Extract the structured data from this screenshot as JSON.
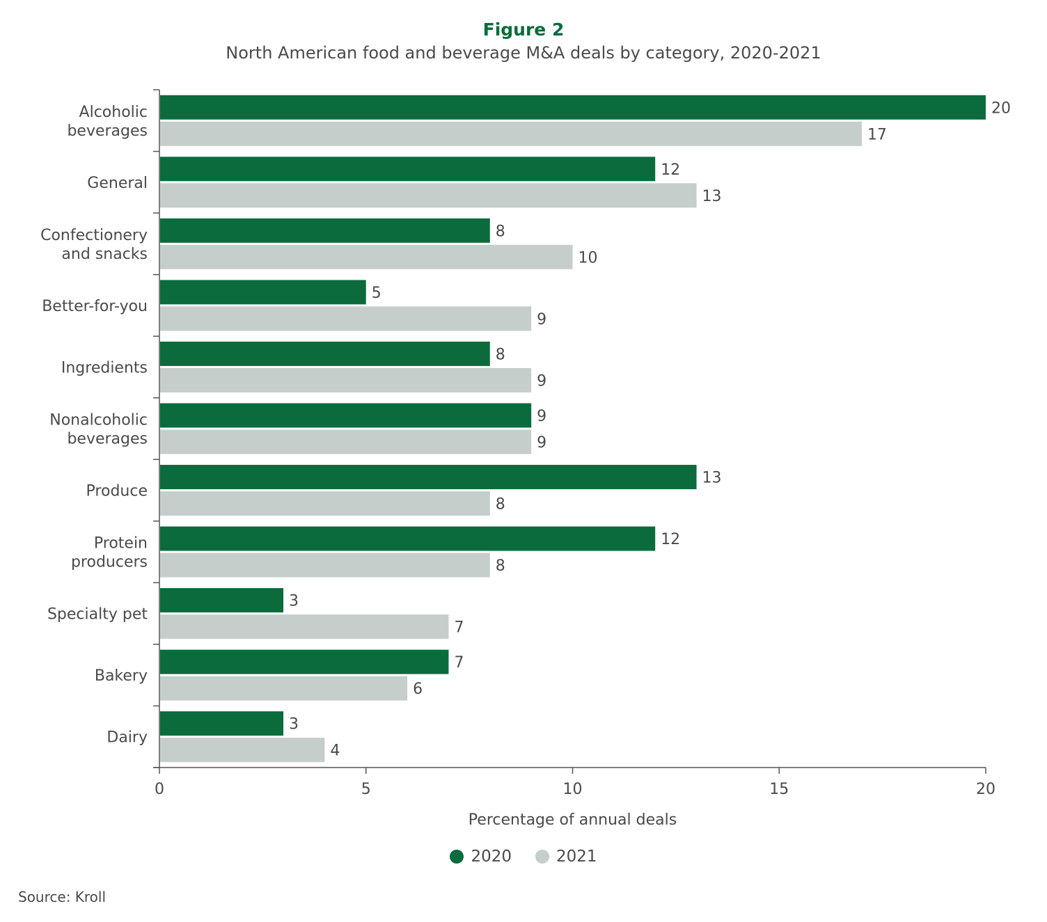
{
  "figure_label": "Figure 2",
  "subtitle": "North American food and beverage M&A deals by category, 2020-2021",
  "source": "Source: Kroll",
  "colors": {
    "series_2020": "#0b6b3c",
    "series_2021": "#c5cecb",
    "axis": "#555555",
    "text": "#4a4a4a"
  },
  "chart_data": {
    "type": "bar",
    "orientation": "horizontal",
    "categories": [
      [
        "Alcoholic",
        "beverages"
      ],
      [
        "General"
      ],
      [
        "Confectionery",
        "and snacks"
      ],
      [
        "Better-for-you"
      ],
      [
        "Ingredients"
      ],
      [
        "Nonalcoholic",
        "beverages"
      ],
      [
        "Produce"
      ],
      [
        "Protein",
        "producers"
      ],
      [
        "Specialty pet"
      ],
      [
        "Bakery"
      ],
      [
        "Dairy"
      ]
    ],
    "series": [
      {
        "name": "2020",
        "values": [
          20,
          12,
          8,
          5,
          8,
          9,
          13,
          12,
          3,
          7,
          3
        ]
      },
      {
        "name": "2021",
        "values": [
          17,
          13,
          10,
          9,
          9,
          9,
          8,
          8,
          7,
          6,
          4
        ]
      }
    ],
    "xlabel": "Percentage of annual deals",
    "xlim": [
      0,
      20
    ],
    "xticks": [
      0,
      5,
      10,
      15,
      20
    ],
    "grid": false,
    "legend": "bottom-center"
  }
}
